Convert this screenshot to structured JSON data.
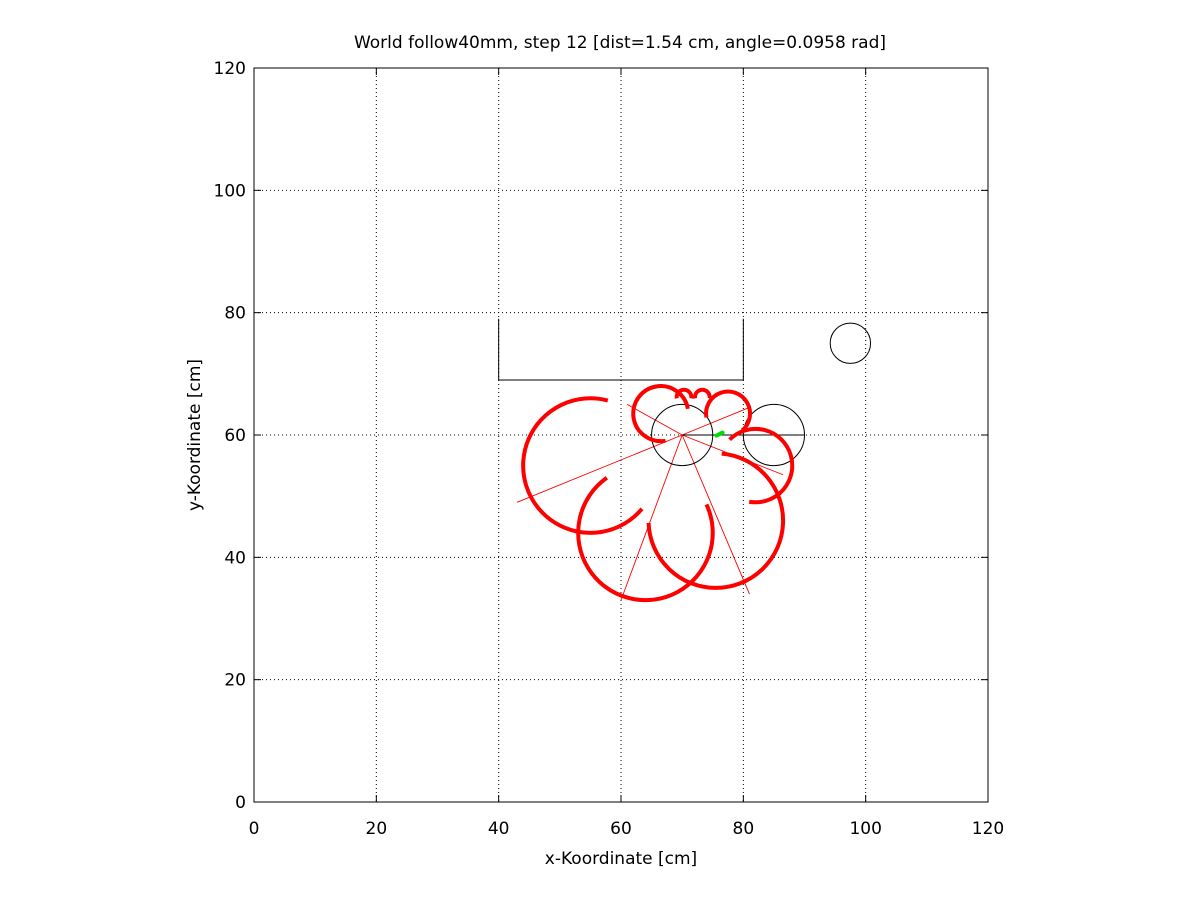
{
  "chart_data": {
    "type": "scatter",
    "title": "World follow40mm, step 12 [dist=1.54 cm, angle=0.0958 rad]",
    "xlabel": "x-Koordinate [cm]",
    "ylabel": "y-Koordinate [cm]",
    "xlim": [
      0,
      120
    ],
    "ylim": [
      0,
      120
    ],
    "xticks": [
      0,
      20,
      40,
      60,
      80,
      100,
      120
    ],
    "yticks": [
      0,
      20,
      40,
      60,
      80,
      100,
      120
    ],
    "xtick_labels": [
      "0",
      "20",
      "40",
      "60",
      "80",
      "100",
      "120"
    ],
    "ytick_labels": [
      "0",
      "20",
      "40",
      "60",
      "80",
      "100",
      "120"
    ],
    "grid": true,
    "colors": {
      "obstacle": "#000000",
      "sensor": "#ff0000",
      "target": "#00dd00"
    },
    "obstacles": {
      "walls": [
        {
          "name": "box-wall",
          "points": [
            [
              40,
              79
            ],
            [
              40,
              69
            ],
            [
              80,
              69
            ],
            [
              80,
              79
            ]
          ]
        }
      ],
      "circles": [
        {
          "name": "robot",
          "cx": 70,
          "cy": 60,
          "r": 5
        },
        {
          "name": "leader-robot",
          "cx": 85,
          "cy": 60,
          "r": 5
        },
        {
          "name": "pillar",
          "cx": 97.5,
          "cy": 75,
          "r": 3.3
        }
      ]
    },
    "heading": {
      "from": [
        70,
        60
      ],
      "to": [
        90,
        60
      ]
    },
    "sensor_rays": [
      {
        "to": [
          43,
          49
        ]
      },
      {
        "to": [
          60,
          33
        ]
      },
      {
        "to": [
          81,
          34
        ]
      },
      {
        "to": [
          86.5,
          53.5
        ]
      },
      {
        "to": [
          81,
          64.5
        ]
      },
      {
        "to": [
          61,
          65
        ]
      }
    ],
    "sensor_arcs": [
      {
        "cx": 55,
        "cy": 55,
        "r": 11,
        "start_deg": 75,
        "end_deg": 320
      },
      {
        "cx": 64,
        "cy": 44,
        "r": 11,
        "start_deg": 125,
        "end_deg": 385
      },
      {
        "cx": 75.5,
        "cy": 46,
        "r": 11,
        "start_deg": -178,
        "end_deg": 85
      },
      {
        "cx": 82,
        "cy": 55,
        "r": 6,
        "start_deg": -100,
        "end_deg": 135
      },
      {
        "cx": 77.5,
        "cy": 63.5,
        "r": 3.6,
        "start_deg": -50,
        "end_deg": 190
      },
      {
        "cx": 66.5,
        "cy": 63.5,
        "r": 4.5,
        "start_deg": 10,
        "end_deg": 280
      },
      {
        "cx": 70.3,
        "cy": 66.2,
        "r": 1.2,
        "start_deg": -10,
        "end_deg": 190
      },
      {
        "cx": 73.3,
        "cy": 66.2,
        "r": 1.2,
        "start_deg": -10,
        "end_deg": 190
      }
    ],
    "target_segment": {
      "from": [
        75.6,
        59.9
      ],
      "to": [
        76.6,
        60.4
      ]
    }
  }
}
